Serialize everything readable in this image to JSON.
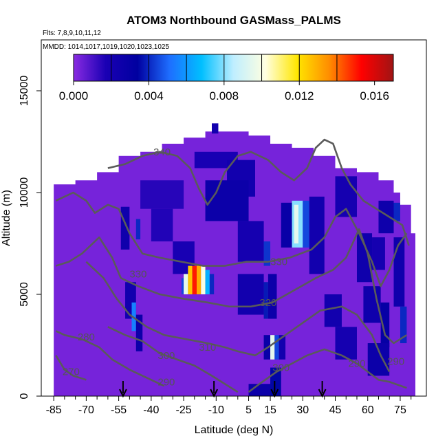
{
  "chart_data": {
    "type": "heatmap",
    "title": "ATOM3 Northbound GASMass_PALMS",
    "subtitle_flights": "Flts: 7,8,9,10,11,12",
    "subtitle_dates": "MMDD: 1014,1017,1019,1020,1023,1025",
    "xlabel": "Latitude (deg N)",
    "ylabel": "Altitude (m)",
    "xlim": [
      -86,
      82
    ],
    "ylim": [
      0,
      17500
    ],
    "x_ticks": [
      -85,
      -70,
      -55,
      -40,
      -25,
      -10,
      5,
      15,
      30,
      45,
      60,
      75
    ],
    "y_ticks": [
      0,
      5000,
      10000,
      15000
    ],
    "colorbar": {
      "min": 0,
      "max": 0.017,
      "ticks": [
        0.0,
        0.004,
        0.008,
        0.012,
        0.016
      ],
      "tick_labels": [
        "0.000",
        "0.004",
        "0.008",
        "0.012",
        "0.016"
      ],
      "colors": [
        "#8a2be2",
        "#1a00b4",
        "#0000a0",
        "#1e6eff",
        "#00bfff",
        "#bfeeff",
        "#ffffe0",
        "#ffe600",
        "#ff8c00",
        "#ff0000",
        "#a01414"
      ]
    },
    "background_value": 0.0003,
    "coverage_top": [
      [
        -85,
        10400
      ],
      [
        -75,
        10600
      ],
      [
        -65,
        11000
      ],
      [
        -55,
        11800
      ],
      [
        -45,
        12000
      ],
      [
        -35,
        12400
      ],
      [
        -25,
        12700
      ],
      [
        -15,
        13000
      ],
      [
        -5,
        13000
      ],
      [
        5,
        12800
      ],
      [
        15,
        12400
      ],
      [
        25,
        12200
      ],
      [
        35,
        11800
      ],
      [
        45,
        11200
      ],
      [
        55,
        11000
      ],
      [
        65,
        10600
      ],
      [
        72,
        10000
      ],
      [
        75,
        9400
      ],
      [
        80,
        8000
      ]
    ],
    "cells": [
      {
        "x0": -12,
        "x1": -9,
        "y0": 12900,
        "y1": 13400,
        "value": 0.0022
      },
      {
        "x0": -20,
        "x1": 0,
        "y0": 11200,
        "y1": 12000,
        "value": 0.0018
      },
      {
        "x0": -5,
        "x1": 8,
        "y0": 9800,
        "y1": 11600,
        "value": 0.0022
      },
      {
        "x0": -45,
        "x1": -25,
        "y0": 9200,
        "y1": 10600,
        "value": 0.0015
      },
      {
        "x0": -15,
        "x1": 5,
        "y0": 8600,
        "y1": 10600,
        "value": 0.0026
      },
      {
        "x0": 20,
        "x1": 25,
        "y0": 7300,
        "y1": 9500,
        "value": 0.0028
      },
      {
        "x0": 25,
        "x1": 30,
        "y0": 7300,
        "y1": 9600,
        "value": 0.008
      },
      {
        "x0": 26,
        "x1": 28,
        "y0": 7500,
        "y1": 9400,
        "value": 0.0095
      },
      {
        "x0": 30,
        "x1": 33,
        "y0": 7300,
        "y1": 9600,
        "value": 0.0045
      },
      {
        "x0": 33,
        "x1": 40,
        "y0": 6000,
        "y1": 9800,
        "value": 0.0022
      },
      {
        "x0": 45,
        "x1": 55,
        "y0": 8800,
        "y1": 10800,
        "value": 0.002
      },
      {
        "x0": 65,
        "x1": 72,
        "y0": 8000,
        "y1": 9600,
        "value": 0.0025
      },
      {
        "x0": 72,
        "x1": 75,
        "y0": 8600,
        "y1": 9500,
        "value": 0.004
      },
      {
        "x0": -54,
        "x1": -50,
        "y0": 7200,
        "y1": 9300,
        "value": 0.0024
      },
      {
        "x0": -40,
        "x1": -30,
        "y0": 7600,
        "y1": 9200,
        "value": 0.0016
      },
      {
        "x0": -47,
        "x1": -45,
        "y0": 7700,
        "y1": 8700,
        "value": 0.004
      },
      {
        "x0": -30,
        "x1": -20,
        "y0": 6000,
        "y1": 7600,
        "value": 0.0018
      },
      {
        "x0": 0,
        "x1": 12,
        "y0": 6600,
        "y1": 8600,
        "value": 0.002
      },
      {
        "x0": 12,
        "x1": 15,
        "y0": 6400,
        "y1": 7600,
        "value": 0.0042
      },
      {
        "x0": 55,
        "x1": 62,
        "y0": 5600,
        "y1": 8000,
        "value": 0.0024
      },
      {
        "x0": 62,
        "x1": 68,
        "y0": 6200,
        "y1": 7800,
        "value": 0.002
      },
      {
        "x0": 72,
        "x1": 77,
        "y0": 4400,
        "y1": 7800,
        "value": 0.0024
      },
      {
        "x0": -26,
        "x1": -25,
        "y0": 5000,
        "y1": 5800,
        "value": 0.0045
      },
      {
        "x0": -25,
        "x1": -23,
        "y0": 5000,
        "y1": 6000,
        "value": 0.0095
      },
      {
        "x0": -23,
        "x1": -21,
        "y0": 5000,
        "y1": 6400,
        "value": 0.0125
      },
      {
        "x0": -21,
        "x1": -19,
        "y0": 5000,
        "y1": 6400,
        "value": 0.015
      },
      {
        "x0": -19,
        "x1": -17,
        "y0": 5000,
        "y1": 6400,
        "value": 0.013
      },
      {
        "x0": -17,
        "x1": -15,
        "y0": 5000,
        "y1": 6400,
        "value": 0.01
      },
      {
        "x0": -15,
        "x1": -13,
        "y0": 5000,
        "y1": 6200,
        "value": 0.0065
      },
      {
        "x0": -13,
        "x1": -11,
        "y0": 5000,
        "y1": 6000,
        "value": 0.004
      },
      {
        "x0": -52,
        "x1": -47,
        "y0": 3800,
        "y1": 5600,
        "value": 0.0022
      },
      {
        "x0": -49,
        "x1": -47,
        "y0": 3200,
        "y1": 4600,
        "value": 0.0055
      },
      {
        "x0": -47,
        "x1": -44,
        "y0": 2200,
        "y1": 4000,
        "value": 0.0026
      },
      {
        "x0": 0,
        "x1": 12,
        "y0": 4000,
        "y1": 6000,
        "value": 0.0022
      },
      {
        "x0": 12,
        "x1": 14,
        "y0": 3800,
        "y1": 5600,
        "value": 0.0038
      },
      {
        "x0": 14,
        "x1": 18,
        "y0": 3800,
        "y1": 6000,
        "value": 0.0026
      },
      {
        "x0": 40,
        "x1": 48,
        "y0": 3400,
        "y1": 5000,
        "value": 0.0022
      },
      {
        "x0": 58,
        "x1": 66,
        "y0": 3600,
        "y1": 5400,
        "value": 0.0024
      },
      {
        "x0": 66,
        "x1": 70,
        "y0": 2400,
        "y1": 4600,
        "value": 0.003
      },
      {
        "x0": 75,
        "x1": 78,
        "y0": 2600,
        "y1": 4400,
        "value": 0.004
      },
      {
        "x0": 12,
        "x1": 15,
        "y0": 1800,
        "y1": 3000,
        "value": 0.0028
      },
      {
        "x0": 15,
        "x1": 17,
        "y0": 1800,
        "y1": 3000,
        "value": 0.0095
      },
      {
        "x0": 17,
        "x1": 19,
        "y0": 1800,
        "y1": 3000,
        "value": 0.0045
      },
      {
        "x0": 19,
        "x1": 22,
        "y0": 1800,
        "y1": 3000,
        "value": 0.0022
      },
      {
        "x0": 45,
        "x1": 55,
        "y0": 1800,
        "y1": 3400,
        "value": 0.002
      },
      {
        "x0": 60,
        "x1": 70,
        "y0": 1000,
        "y1": 2600,
        "value": 0.0026
      },
      {
        "x0": 5,
        "x1": 15,
        "y0": 0,
        "y1": 600,
        "value": 0.0026
      },
      {
        "x0": 15,
        "x1": 20,
        "y0": 0,
        "y1": 1400,
        "value": 0.0035
      }
    ],
    "contours": [
      {
        "level": "280",
        "label_at": [
          -70,
          2900
        ],
        "points": [
          [
            -84,
            3200
          ],
          [
            -80,
            3000
          ],
          [
            -72,
            2800
          ],
          [
            -64,
            2400
          ],
          [
            -58,
            1800
          ],
          [
            -50,
            1300
          ],
          [
            -44,
            1000
          ],
          [
            -38,
            700
          ],
          [
            -34,
            500
          ]
        ]
      },
      {
        "level": "270",
        "label_at": [
          -77,
          1200
        ],
        "points": [
          [
            -84,
            2000
          ],
          [
            -80,
            1300
          ],
          [
            -76,
            1000
          ],
          [
            -70,
            800
          ]
        ]
      },
      {
        "level": "290",
        "label_at": [
          -82,
          11200
        ],
        "points": []
      },
      {
        "level": "300",
        "label_at": [
          20,
          1400
        ],
        "points": [
          [
            5,
            200
          ],
          [
            10,
            600
          ],
          [
            18,
            1200
          ],
          [
            25,
            1600
          ],
          [
            32,
            2000
          ],
          [
            40,
            2300
          ],
          [
            48,
            2000
          ],
          [
            55,
            1600
          ],
          [
            60,
            1200
          ],
          [
            65,
            800
          ],
          [
            70,
            700
          ],
          [
            78,
            400
          ]
        ]
      },
      {
        "level": "300",
        "label_at": [
          -33,
          2000
        ],
        "points": [
          [
            -60,
            3400
          ],
          [
            -52,
            3000
          ],
          [
            -44,
            2700
          ],
          [
            -36,
            2100
          ],
          [
            -28,
            1800
          ],
          [
            -20,
            1500
          ],
          [
            -12,
            1000
          ],
          [
            -6,
            600
          ],
          [
            0,
            200
          ]
        ]
      },
      {
        "level": "310",
        "label_at": [
          -14,
          2400
        ],
        "points": [
          [
            -70,
            6600
          ],
          [
            -62,
            5800
          ],
          [
            -56,
            4800
          ],
          [
            -50,
            4000
          ],
          [
            -42,
            3400
          ],
          [
            -34,
            3000
          ],
          [
            -24,
            2800
          ],
          [
            -14,
            2600
          ],
          [
            -6,
            2400
          ],
          [
            0,
            2200
          ],
          [
            8,
            2000
          ],
          [
            14,
            2400
          ],
          [
            22,
            3000
          ],
          [
            30,
            3600
          ],
          [
            38,
            4200
          ],
          [
            48,
            4400
          ],
          [
            55,
            4000
          ],
          [
            62,
            3000
          ],
          [
            66,
            2000
          ],
          [
            70,
            1200
          ]
        ]
      },
      {
        "level": "320",
        "label_at": [
          14,
          4600
        ],
        "points": [
          [
            -84,
            6400
          ],
          [
            -78,
            6600
          ],
          [
            -72,
            7000
          ],
          [
            -64,
            7800
          ],
          [
            -58,
            6800
          ],
          [
            -54,
            5800
          ],
          [
            -46,
            5400
          ],
          [
            -36,
            5000
          ],
          [
            -26,
            4800
          ],
          [
            -14,
            4600
          ],
          [
            -4,
            4400
          ],
          [
            6,
            4400
          ],
          [
            16,
            4600
          ],
          [
            26,
            5200
          ],
          [
            36,
            5800
          ],
          [
            44,
            6200
          ],
          [
            50,
            6800
          ],
          [
            56,
            8200
          ],
          [
            60,
            7000
          ],
          [
            64,
            4800
          ],
          [
            68,
            3000
          ],
          [
            72,
            2600
          ],
          [
            78,
            3000
          ]
        ]
      },
      {
        "level": "330",
        "label_at": [
          19,
          6600
        ],
        "points": [
          [
            -84,
            9600
          ],
          [
            -76,
            10000
          ],
          [
            -70,
            9600
          ],
          [
            -66,
            9000
          ],
          [
            -60,
            9400
          ],
          [
            -55,
            9200
          ],
          [
            -50,
            8000
          ],
          [
            -44,
            7000
          ],
          [
            -36,
            6800
          ],
          [
            -26,
            6600
          ],
          [
            -16,
            6400
          ],
          [
            -6,
            6400
          ],
          [
            4,
            6600
          ],
          [
            14,
            6600
          ],
          [
            24,
            6800
          ],
          [
            34,
            7200
          ],
          [
            40,
            7800
          ],
          [
            45,
            8800
          ],
          [
            50,
            9200
          ],
          [
            56,
            8000
          ],
          [
            62,
            6600
          ],
          [
            66,
            5400
          ],
          [
            70,
            6200
          ],
          [
            74,
            7400
          ],
          [
            78,
            8000
          ]
        ]
      },
      {
        "level": "340",
        "label_at": [
          -35,
          12000
        ],
        "points": [
          [
            -60,
            11200
          ],
          [
            -52,
            11400
          ],
          [
            -44,
            11800
          ],
          [
            -36,
            12000
          ],
          [
            -28,
            11800
          ],
          [
            -22,
            11200
          ],
          [
            -18,
            10200
          ],
          [
            -14,
            9400
          ],
          [
            -10,
            10000
          ],
          [
            -6,
            11000
          ],
          [
            0,
            11800
          ],
          [
            6,
            12000
          ],
          [
            14,
            11600
          ],
          [
            20,
            11000
          ],
          [
            26,
            10600
          ],
          [
            32,
            11200
          ],
          [
            36,
            12200
          ],
          [
            40,
            12600
          ],
          [
            44,
            12400
          ],
          [
            48,
            11200
          ],
          [
            52,
            10400
          ],
          [
            58,
            9600
          ],
          [
            64,
            9200
          ],
          [
            70,
            8800
          ],
          [
            76,
            8400
          ],
          [
            79,
            7400
          ]
        ]
      }
    ],
    "contour_label_positions": [
      {
        "text": "340",
        "x": -35,
        "y": 12000
      },
      {
        "text": "330",
        "x": 19,
        "y": 6600
      },
      {
        "text": "320",
        "x": 14,
        "y": 4600
      },
      {
        "text": "310",
        "x": -14,
        "y": 2400
      },
      {
        "text": "300",
        "x": -33,
        "y": 2000
      },
      {
        "text": "300",
        "x": 20,
        "y": 1400
      },
      {
        "text": "280",
        "x": -70,
        "y": 2900
      },
      {
        "text": "270",
        "x": -77,
        "y": 1200
      },
      {
        "text": "290",
        "x": -33,
        "y": 700
      },
      {
        "text": "290",
        "x": 55,
        "y": 1600
      },
      {
        "text": "290",
        "x": 73,
        "y": 1700
      },
      {
        "text": "330",
        "x": -46,
        "y": 6000
      }
    ],
    "arrows_latitude": [
      -53,
      -11,
      17,
      39
    ],
    "grid": false,
    "legend_placement": "top"
  }
}
